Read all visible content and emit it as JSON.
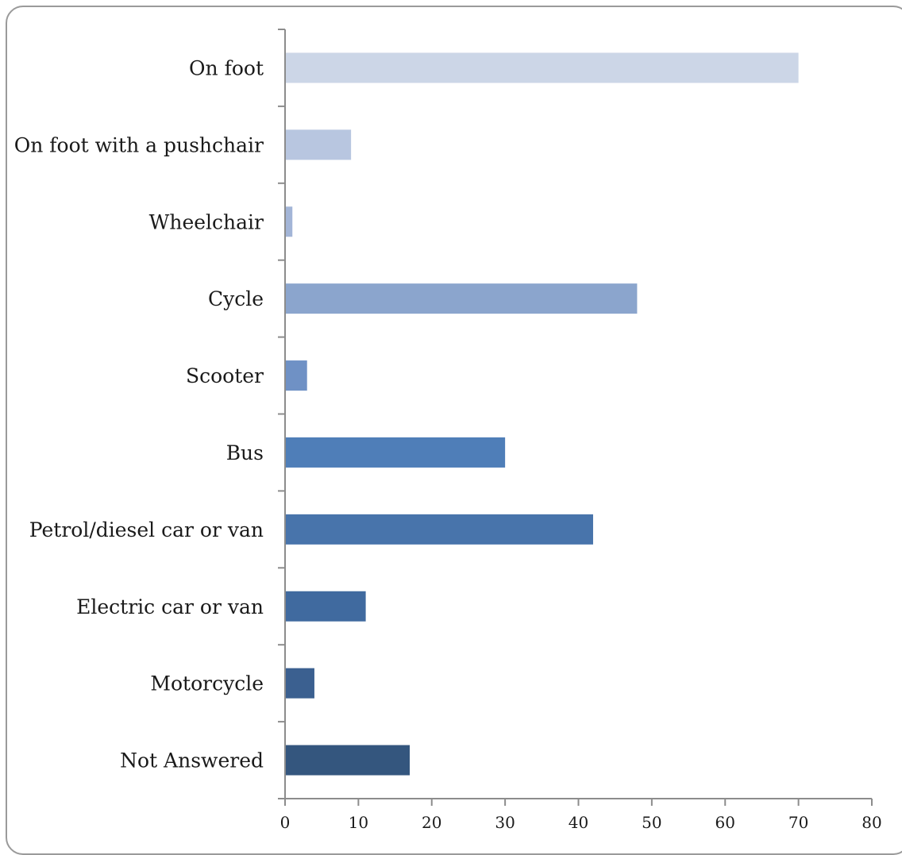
{
  "chart_data": {
    "type": "bar",
    "orientation": "horizontal",
    "categories": [
      "On foot",
      "On foot with a pushchair",
      "Wheelchair",
      "Cycle",
      "Scooter",
      "Bus",
      "Petrol/diesel car or van",
      "Electric car or van",
      "Motorcycle",
      "Not Answered"
    ],
    "values": [
      70,
      9,
      1,
      48,
      3,
      30,
      42,
      11,
      4,
      17
    ],
    "colors": [
      "#ccd6e7",
      "#b8c6e0",
      "#a3b5d7",
      "#8ba5cd",
      "#6f91c5",
      "#4f7eb8",
      "#4874ab",
      "#406a9f",
      "#3b6090",
      "#34567e"
    ],
    "xlim": [
      0,
      80
    ],
    "xticks": [
      0,
      10,
      20,
      30,
      40,
      50,
      60,
      70,
      80
    ],
    "title": "",
    "xlabel": "",
    "ylabel": "",
    "grid": false,
    "legend": "none"
  }
}
